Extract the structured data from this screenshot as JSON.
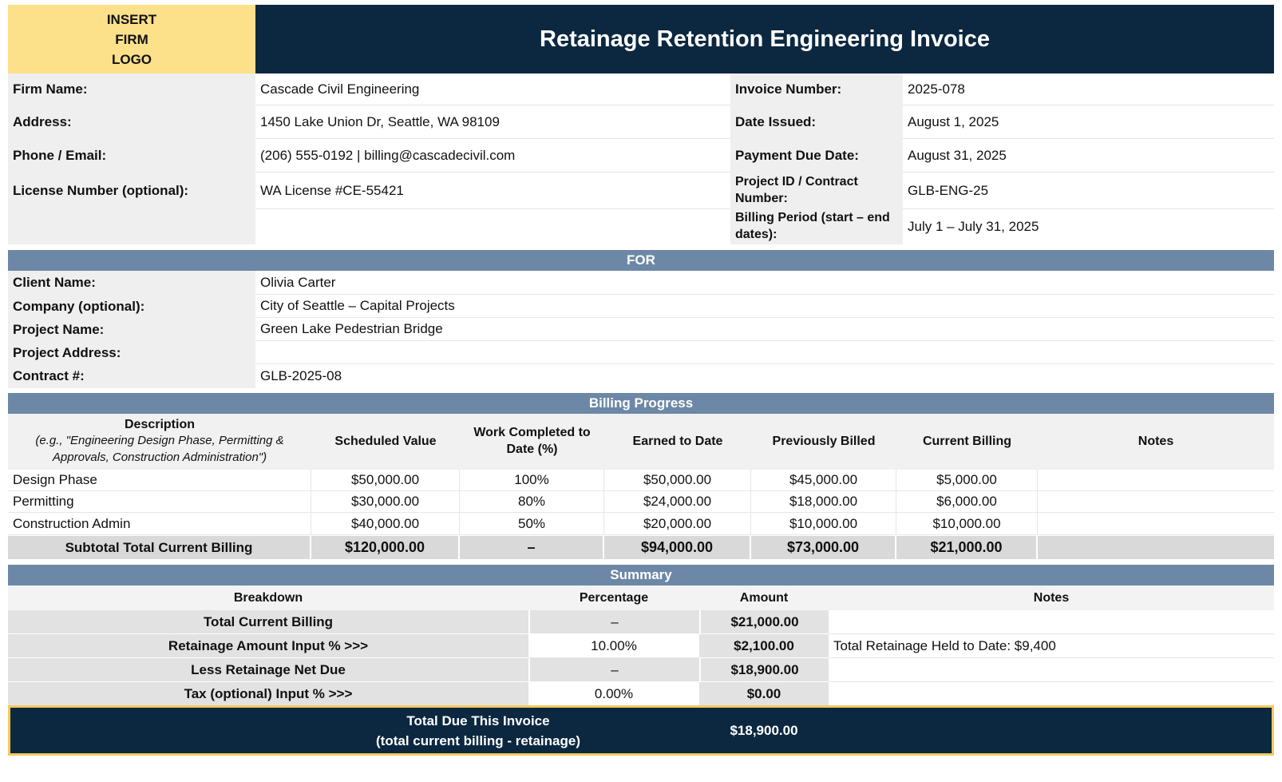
{
  "header": {
    "logo_text": "INSERT\nFIRM\nLOGO",
    "title": "Retainage Retention Engineering Invoice"
  },
  "firm": {
    "rows": [
      {
        "label": "Firm Name:",
        "value": "Cascade Civil Engineering"
      },
      {
        "label": "Address:",
        "value": "1450 Lake Union Dr, Seattle, WA 98109"
      },
      {
        "label": "Phone / Email:",
        "value": "(206) 555-0192 | billing@cascadecivil.com"
      },
      {
        "label": "License Number (optional):",
        "value": "WA License #CE-55421"
      }
    ]
  },
  "invoice": {
    "rows": [
      {
        "label": "Invoice Number:",
        "value": "2025-078"
      },
      {
        "label": "Date Issued:",
        "value": "August 1, 2025"
      },
      {
        "label": "Payment Due Date:",
        "value": "August 31, 2025"
      },
      {
        "label": "Project ID / Contract Number:",
        "value": "GLB-ENG-25"
      },
      {
        "label": "Billing Period (start – end dates):",
        "value": "July 1 – July 31, 2025"
      }
    ]
  },
  "for_section": {
    "title": "FOR",
    "rows": [
      {
        "label": "Client Name:",
        "value": "Olivia Carter"
      },
      {
        "label": "Company (optional):",
        "value": "City of Seattle – Capital Projects"
      },
      {
        "label": "Project Name:",
        "value": "Green Lake Pedestrian Bridge"
      },
      {
        "label": "Project Address:",
        "value": ""
      },
      {
        "label": "Contract #:",
        "value": "GLB-2025-08"
      }
    ]
  },
  "billing": {
    "title": "Billing Progress",
    "headers": {
      "description": "Description",
      "description_hint": "(e.g., \"Engineering Design Phase, Permitting & Approvals, Construction Administration\")",
      "scheduled": "Scheduled Value",
      "completed": "Work Completed to Date (%)",
      "earned": "Earned to Date",
      "previous": "Previously Billed",
      "current": "Current Billing",
      "notes": "Notes"
    },
    "rows": [
      {
        "description": "Design Phase",
        "scheduled": "$50,000.00",
        "completed": "100%",
        "earned": "$50,000.00",
        "previous": "$45,000.00",
        "current": "$5,000.00",
        "notes": ""
      },
      {
        "description": "Permitting",
        "scheduled": "$30,000.00",
        "completed": "80%",
        "earned": "$24,000.00",
        "previous": "$18,000.00",
        "current": "$6,000.00",
        "notes": ""
      },
      {
        "description": "Construction Admin",
        "scheduled": "$40,000.00",
        "completed": "50%",
        "earned": "$20,000.00",
        "previous": "$10,000.00",
        "current": "$10,000.00",
        "notes": ""
      }
    ],
    "subtotal": {
      "label": "Subtotal Total Current Billing",
      "scheduled": "$120,000.00",
      "completed": "–",
      "earned": "$94,000.00",
      "previous": "$73,000.00",
      "current": "$21,000.00",
      "notes": ""
    }
  },
  "summary": {
    "title": "Summary",
    "headers": {
      "breakdown": "Breakdown",
      "percentage": "Percentage",
      "amount": "Amount",
      "notes": "Notes"
    },
    "rows": [
      {
        "label": "Total Current Billing",
        "percentage": "–",
        "amount": "$21,000.00",
        "notes": ""
      },
      {
        "label": "Retainage Amount Input % >>>",
        "percentage": "10.00%",
        "amount": "$2,100.00",
        "notes": "Total Retainage Held to Date: $9,400"
      },
      {
        "label": "Less Retainage Net Due",
        "percentage": "–",
        "amount": "$18,900.00",
        "notes": ""
      },
      {
        "label": "Tax (optional) Input % >>>",
        "percentage": "0.00%",
        "amount": "$0.00",
        "notes": ""
      }
    ],
    "total": {
      "label_line1": "Total Due This Invoice",
      "label_line2": "(total current billing - retainage)",
      "amount": "$18,900.00"
    }
  },
  "colors": {
    "navy": "#0b2840",
    "logo_yellow": "#fde08a",
    "band_blue": "#6c88a6",
    "border_gold": "#f4c95d"
  }
}
